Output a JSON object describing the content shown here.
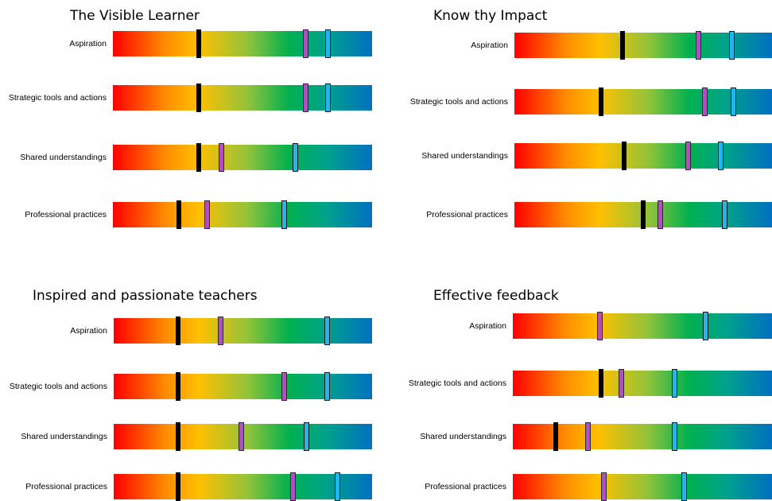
{
  "chart_data": [
    {
      "type": "bar",
      "title": "The Visible Learner",
      "rows": [
        {
          "label": "Aspiration",
          "markers": [
            {
              "color": "black",
              "value": 0.33
            },
            {
              "color": "purple",
              "value": 0.745
            },
            {
              "color": "blue",
              "value": 0.83
            }
          ]
        },
        {
          "label": "Strategic tools and actions",
          "markers": [
            {
              "color": "black",
              "value": 0.33
            },
            {
              "color": "purple",
              "value": 0.745
            },
            {
              "color": "blue",
              "value": 0.83
            }
          ]
        },
        {
          "label": "Shared understandings",
          "markers": [
            {
              "color": "black",
              "value": 0.33
            },
            {
              "color": "purple",
              "value": 0.42
            },
            {
              "color": "blue",
              "value": 0.705
            }
          ]
        },
        {
          "label": "Professional practices",
          "markers": [
            {
              "color": "black",
              "value": 0.255
            },
            {
              "color": "purple",
              "value": 0.365
            },
            {
              "color": "blue",
              "value": 0.66
            }
          ]
        }
      ]
    },
    {
      "type": "bar",
      "title": "Know thy Impact",
      "rows": [
        {
          "label": "Aspiration",
          "markers": [
            {
              "color": "black",
              "value": 0.42
            },
            {
              "color": "purple",
              "value": 0.715
            },
            {
              "color": "blue",
              "value": 0.845
            }
          ]
        },
        {
          "label": "Strategic tools and actions",
          "markers": [
            {
              "color": "black",
              "value": 0.335
            },
            {
              "color": "purple",
              "value": 0.74
            },
            {
              "color": "blue",
              "value": 0.85
            }
          ]
        },
        {
          "label": "Shared understandings",
          "markers": [
            {
              "color": "black",
              "value": 0.425
            },
            {
              "color": "purple",
              "value": 0.675
            },
            {
              "color": "blue",
              "value": 0.8
            }
          ]
        },
        {
          "label": "Professional practices",
          "markers": [
            {
              "color": "black",
              "value": 0.5
            },
            {
              "color": "purple",
              "value": 0.565
            },
            {
              "color": "blue",
              "value": 0.815
            }
          ]
        }
      ]
    },
    {
      "type": "bar",
      "title": "Inspired and passionate teachers",
      "rows": [
        {
          "label": "Aspiration",
          "markers": [
            {
              "color": "black",
              "value": 0.25
            },
            {
              "color": "purple",
              "value": 0.415
            },
            {
              "color": "blue",
              "value": 0.825
            }
          ]
        },
        {
          "label": "Strategic tools and actions",
          "markers": [
            {
              "color": "black",
              "value": 0.25
            },
            {
              "color": "purple",
              "value": 0.66
            },
            {
              "color": "blue",
              "value": 0.825
            }
          ]
        },
        {
          "label": "Shared understandings",
          "markers": [
            {
              "color": "black",
              "value": 0.25
            },
            {
              "color": "purple",
              "value": 0.495
            },
            {
              "color": "blue",
              "value": 0.745
            }
          ]
        },
        {
          "label": "Professional practices",
          "markers": [
            {
              "color": "black",
              "value": 0.25
            },
            {
              "color": "purple",
              "value": 0.695
            },
            {
              "color": "blue",
              "value": 0.865
            }
          ]
        }
      ]
    },
    {
      "type": "bar",
      "title": "Effective feedback",
      "rows": [
        {
          "label": "Aspiration",
          "markers": [
            {
              "color": "purple",
              "value": 0.335
            },
            {
              "color": "blue",
              "value": 0.745
            }
          ]
        },
        {
          "label": "Strategic tools and actions",
          "markers": [
            {
              "color": "black",
              "value": 0.34
            },
            {
              "color": "purple",
              "value": 0.42
            },
            {
              "color": "blue",
              "value": 0.625
            }
          ]
        },
        {
          "label": "Shared understandings",
          "markers": [
            {
              "color": "black",
              "value": 0.165
            },
            {
              "color": "purple",
              "value": 0.29
            },
            {
              "color": "blue",
              "value": 0.625
            }
          ]
        },
        {
          "label": "Professional practices",
          "markers": [
            {
              "color": "purple",
              "value": 0.35
            },
            {
              "color": "blue",
              "value": 0.66
            }
          ]
        }
      ]
    }
  ]
}
